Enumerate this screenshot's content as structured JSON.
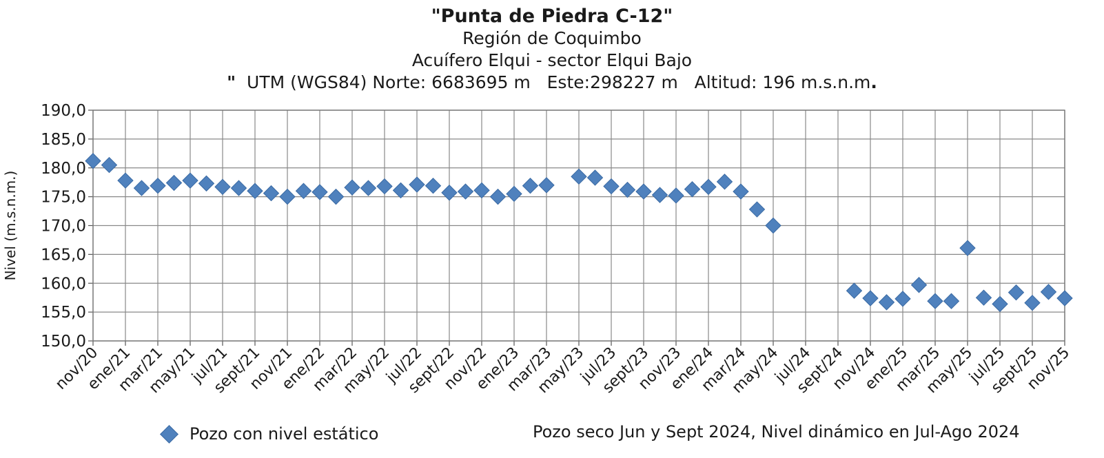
{
  "chart_data": {
    "type": "scatter",
    "title": "\"Punta de Piedra C-12\"",
    "subtitle_region": "Región de Coquimbo",
    "subtitle_aquifer": "Acuífero Elqui - sector Elqui Bajo",
    "subtitle_coords_prefix": "\"",
    "subtitle_coords": "UTM (WGS84) Norte: 6683695 m   Este:298227 m   Altitud: 196 m.s.n.m",
    "subtitle_coords_suffix": ".",
    "xlabel": "",
    "ylabel": "Nivel (m.s.n.m.)",
    "ylim": [
      150,
      190
    ],
    "yticks": [
      "150,0",
      "155,0",
      "160,0",
      "165,0",
      "170,0",
      "175,0",
      "180,0",
      "185,0",
      "190,0"
    ],
    "x_tick_labels": [
      "nov/20",
      "ene/21",
      "mar/21",
      "may/21",
      "jul/21",
      "sept/21",
      "nov/21",
      "ene/22",
      "mar/22",
      "may/22",
      "jul/22",
      "sept/22",
      "nov/22",
      "ene/23",
      "mar/23",
      "may/23",
      "jul/23",
      "sept/23",
      "nov/23",
      "ene/24",
      "mar/24",
      "may/24",
      "jul/24",
      "sept/24",
      "nov/24",
      "ene/25",
      "mar/25",
      "may/25",
      "jul/25",
      "sept/25",
      "nov/25"
    ],
    "grid": true,
    "legend_position": "bottom-left",
    "series": [
      {
        "name": "Pozo con nivel estático",
        "color": "#4f81bd",
        "marker": "diamond",
        "points": [
          {
            "x": "nov/20",
            "y": 181.2
          },
          {
            "x": "dic/20",
            "y": 180.5
          },
          {
            "x": "ene/21",
            "y": 177.8
          },
          {
            "x": "feb/21",
            "y": 176.5
          },
          {
            "x": "mar/21",
            "y": 176.9
          },
          {
            "x": "abr/21",
            "y": 177.4
          },
          {
            "x": "may/21",
            "y": 177.8
          },
          {
            "x": "jun/21",
            "y": 177.3
          },
          {
            "x": "jul/21",
            "y": 176.7
          },
          {
            "x": "ago/21",
            "y": 176.5
          },
          {
            "x": "sept/21",
            "y": 176.0
          },
          {
            "x": "oct/21",
            "y": 175.6
          },
          {
            "x": "nov/21",
            "y": 175.0
          },
          {
            "x": "dic/21",
            "y": 176.0
          },
          {
            "x": "ene/22",
            "y": 175.8
          },
          {
            "x": "feb/22",
            "y": 175.0
          },
          {
            "x": "mar/22",
            "y": 176.6
          },
          {
            "x": "abr/22",
            "y": 176.5
          },
          {
            "x": "may/22",
            "y": 176.8
          },
          {
            "x": "jun/22",
            "y": 176.1
          },
          {
            "x": "jul/22",
            "y": 177.1
          },
          {
            "x": "ago/22",
            "y": 176.9
          },
          {
            "x": "sept/22",
            "y": 175.7
          },
          {
            "x": "oct/22",
            "y": 175.9
          },
          {
            "x": "nov/22",
            "y": 176.1
          },
          {
            "x": "dic/22",
            "y": 175.0
          },
          {
            "x": "ene/23",
            "y": 175.5
          },
          {
            "x": "feb/23",
            "y": 176.9
          },
          {
            "x": "mar/23",
            "y": 177.0
          },
          {
            "x": "may/23",
            "y": 178.5
          },
          {
            "x": "jun/23",
            "y": 178.3
          },
          {
            "x": "jul/23",
            "y": 176.8
          },
          {
            "x": "ago/23",
            "y": 176.2
          },
          {
            "x": "sept/23",
            "y": 175.9
          },
          {
            "x": "oct/23",
            "y": 175.3
          },
          {
            "x": "nov/23",
            "y": 175.2
          },
          {
            "x": "dic/23",
            "y": 176.3
          },
          {
            "x": "ene/24",
            "y": 176.7
          },
          {
            "x": "feb/24",
            "y": 177.6
          },
          {
            "x": "mar/24",
            "y": 175.9
          },
          {
            "x": "abr/24",
            "y": 172.8
          },
          {
            "x": "may/24",
            "y": 170.0
          },
          {
            "x": "oct/24",
            "y": 158.7
          },
          {
            "x": "nov/24",
            "y": 157.4
          },
          {
            "x": "dic/24",
            "y": 156.7
          },
          {
            "x": "ene/25",
            "y": 157.3
          },
          {
            "x": "feb/25",
            "y": 159.7
          },
          {
            "x": "mar/25",
            "y": 156.9
          },
          {
            "x": "abr/25",
            "y": 156.9
          },
          {
            "x": "may/25",
            "y": 166.1
          },
          {
            "x": "jun/25",
            "y": 157.5
          },
          {
            "x": "jul/25",
            "y": 156.4
          },
          {
            "x": "ago/25",
            "y": 158.4
          },
          {
            "x": "sept/25",
            "y": 156.6
          },
          {
            "x": "oct/25",
            "y": 158.5
          },
          {
            "x": "nov/25",
            "y": 157.4
          }
        ]
      }
    ],
    "annotation": "Pozo seco Jun y Sept 2024, Nivel dinámico en Jul-Ago 2024"
  }
}
